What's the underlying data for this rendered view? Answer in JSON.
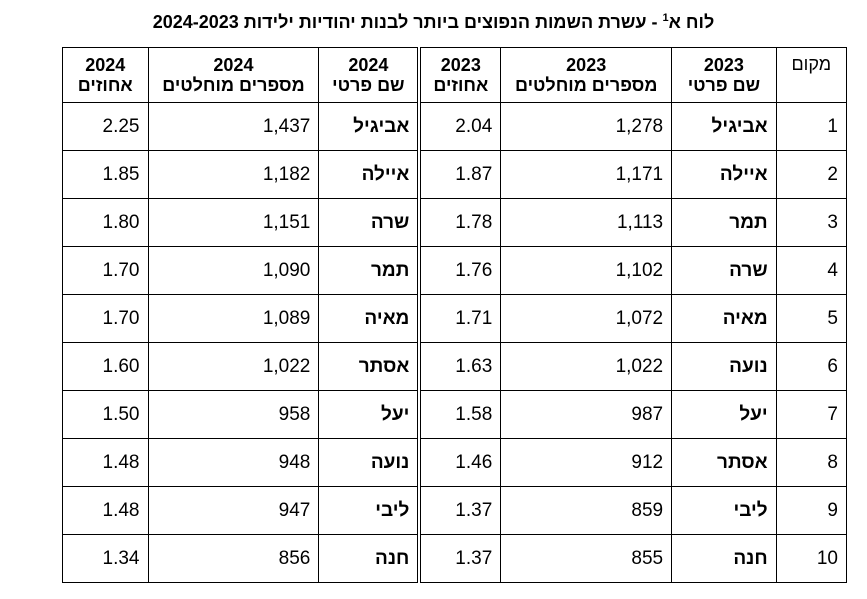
{
  "title": {
    "prefix": "לוח א",
    "sup": "1",
    "rest": " - עשרת השמות הנפוצים ביותר לבנות יהודיות ילידות 2024-2023"
  },
  "table": {
    "headers": [
      {
        "lines": [
          "מקום"
        ]
      },
      {
        "lines": [
          "2023",
          "שם פרטי"
        ]
      },
      {
        "lines": [
          "2023",
          "מספרים מוחלטים"
        ]
      },
      {
        "lines": [
          "2023",
          "אחוזים"
        ]
      },
      {
        "lines": [
          "2024",
          "שם פרטי"
        ]
      },
      {
        "lines": [
          "2024",
          "מספרים מוחלטים"
        ]
      },
      {
        "lines": [
          "2024",
          "אחוזים"
        ]
      }
    ],
    "rows": [
      [
        "1",
        "אביגיל",
        "1,278",
        "2.04",
        "אביגיל",
        "1,437",
        "2.25"
      ],
      [
        "2",
        "איילה",
        "1,171",
        "1.87",
        "איילה",
        "1,182",
        "1.85"
      ],
      [
        "3",
        "תמר",
        "1,113",
        "1.78",
        "שרה",
        "1,151",
        "1.80"
      ],
      [
        "4",
        "שרה",
        "1,102",
        "1.76",
        "תמר",
        "1,090",
        "1.70"
      ],
      [
        "5",
        "מאיה",
        "1,072",
        "1.71",
        "מאיה",
        "1,089",
        "1.70"
      ],
      [
        "6",
        "נועה",
        "1,022",
        "1.63",
        "אסתר",
        "1,022",
        "1.60"
      ],
      [
        "7",
        "יעל",
        "987",
        "1.58",
        "יעל",
        "958",
        "1.50"
      ],
      [
        "8",
        "אסתר",
        "912",
        "1.46",
        "נועה",
        "948",
        "1.48"
      ],
      [
        "9",
        "ליבי",
        "859",
        "1.37",
        "ליבי",
        "947",
        "1.48"
      ],
      [
        "10",
        "חנה",
        "855",
        "1.37",
        "חנה",
        "856",
        "1.34"
      ]
    ]
  }
}
